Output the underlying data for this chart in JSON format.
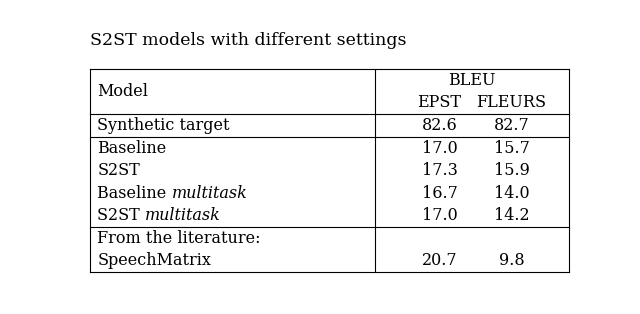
{
  "title": "S2ST models with different settings",
  "col_header_1": "Model",
  "col_header_bleu": "BLEU",
  "col_header_epst": "EPST",
  "col_header_fleurs": "FLEURS",
  "rows": [
    {
      "model": "Synthetic target",
      "italic_part": null,
      "epst": "82.6",
      "fleurs": "82.7",
      "group": "synthetic"
    },
    {
      "model": "Baseline",
      "italic_part": null,
      "epst": "17.0",
      "fleurs": "15.7",
      "group": "main"
    },
    {
      "model": "S2ST",
      "italic_part": null,
      "epst": "17.3",
      "fleurs": "15.9",
      "group": "main"
    },
    {
      "model": "Baseline ",
      "italic_part": "multitask",
      "epst": "16.7",
      "fleurs": "14.0",
      "group": "main"
    },
    {
      "model": "S2ST ",
      "italic_part": "multitask",
      "epst": "17.0",
      "fleurs": "14.2",
      "group": "main"
    },
    {
      "model": "From the literature:",
      "italic_part": null,
      "epst": null,
      "fleurs": null,
      "group": "literature_header"
    },
    {
      "model": "SpeechMatrix",
      "italic_part": null,
      "epst": "20.7",
      "fleurs": "9.8",
      "group": "literature"
    }
  ],
  "bg_color": "#ffffff",
  "text_color": "#000000",
  "line_color": "#000000",
  "font_size": 11.5,
  "title_font_size": 12.5
}
